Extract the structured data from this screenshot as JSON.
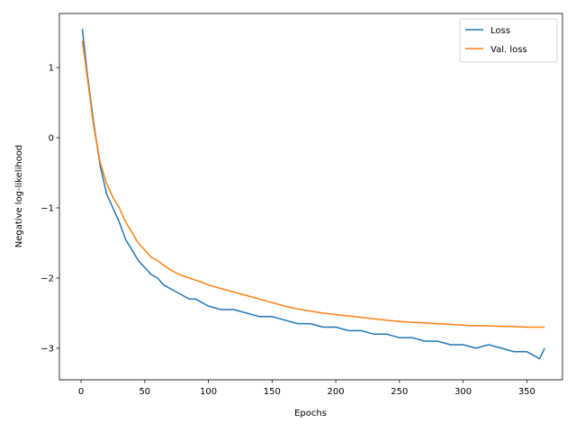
{
  "chart_data": {
    "type": "line",
    "title": "",
    "xlabel": "Epochs",
    "ylabel": "Negative log-likelihood",
    "xlim": [
      -17,
      378
    ],
    "ylim": [
      -3.45,
      1.77
    ],
    "xticks": [
      0,
      50,
      100,
      150,
      200,
      250,
      300,
      350
    ],
    "xtick_labels": [
      "0",
      "50",
      "100",
      "150",
      "200",
      "250",
      "300",
      "350"
    ],
    "yticks": [
      1,
      0,
      -1,
      -2,
      -3
    ],
    "ytick_labels": [
      "1",
      "0",
      "−1",
      "−2",
      "−3"
    ],
    "grid": false,
    "legend_position": "top-right",
    "series": [
      {
        "name": "Loss",
        "color": "#1f77b4",
        "x": [
          1,
          5,
          10,
          15,
          20,
          25,
          30,
          35,
          40,
          45,
          50,
          55,
          60,
          65,
          70,
          75,
          80,
          85,
          90,
          95,
          100,
          110,
          120,
          130,
          140,
          150,
          160,
          170,
          180,
          190,
          200,
          210,
          220,
          230,
          240,
          250,
          260,
          270,
          280,
          290,
          300,
          310,
          320,
          330,
          340,
          350,
          355,
          360,
          364
        ],
        "y": [
          1.55,
          0.9,
          0.2,
          -0.4,
          -0.8,
          -1.0,
          -1.2,
          -1.45,
          -1.6,
          -1.75,
          -1.85,
          -1.95,
          -2.0,
          -2.1,
          -2.15,
          -2.2,
          -2.25,
          -2.3,
          -2.3,
          -2.35,
          -2.4,
          -2.45,
          -2.45,
          -2.5,
          -2.55,
          -2.55,
          -2.6,
          -2.65,
          -2.65,
          -2.7,
          -2.7,
          -2.75,
          -2.75,
          -2.8,
          -2.8,
          -2.85,
          -2.85,
          -2.9,
          -2.9,
          -2.95,
          -2.95,
          -3.0,
          -2.95,
          -3.0,
          -3.05,
          -3.05,
          -3.1,
          -3.15,
          -3.0
        ]
      },
      {
        "name": "Val. loss",
        "color": "#ff7f0e",
        "x": [
          1,
          5,
          10,
          15,
          20,
          25,
          30,
          35,
          40,
          45,
          50,
          55,
          60,
          65,
          70,
          75,
          80,
          85,
          90,
          95,
          100,
          110,
          120,
          130,
          140,
          150,
          160,
          170,
          180,
          190,
          200,
          210,
          220,
          230,
          240,
          250,
          260,
          270,
          280,
          290,
          300,
          310,
          320,
          330,
          340,
          350,
          355,
          360,
          364
        ],
        "y": [
          1.38,
          0.85,
          0.15,
          -0.35,
          -0.65,
          -0.85,
          -1.0,
          -1.2,
          -1.35,
          -1.5,
          -1.6,
          -1.7,
          -1.75,
          -1.82,
          -1.88,
          -1.93,
          -1.97,
          -2.0,
          -2.03,
          -2.06,
          -2.1,
          -2.15,
          -2.2,
          -2.25,
          -2.3,
          -2.35,
          -2.4,
          -2.44,
          -2.47,
          -2.5,
          -2.52,
          -2.54,
          -2.56,
          -2.58,
          -2.6,
          -2.62,
          -2.63,
          -2.64,
          -2.65,
          -2.66,
          -2.67,
          -2.68,
          -2.68,
          -2.69,
          -2.69,
          -2.7,
          -2.7,
          -2.7,
          -2.7
        ]
      }
    ]
  }
}
